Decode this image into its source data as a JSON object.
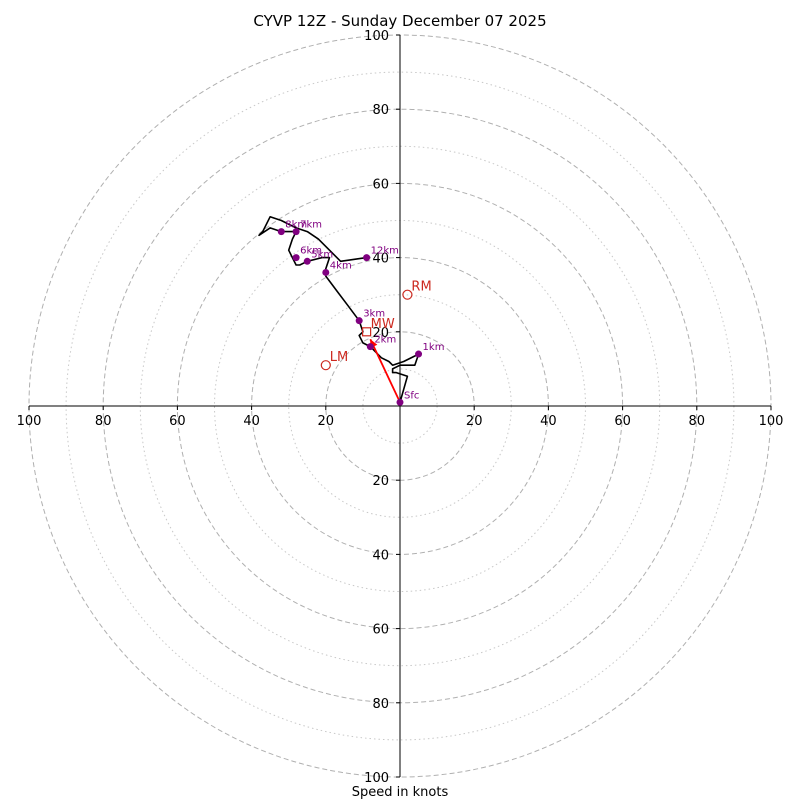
{
  "chart_data": {
    "type": "hodograph",
    "title": "CYVP 12Z - Sunday December 07 2025",
    "xlabel": "Speed in knots",
    "range": 100,
    "ticks": [
      20,
      40,
      60,
      80,
      100
    ],
    "tick_labels": [
      "20",
      "40",
      "60",
      "80",
      "100"
    ],
    "ring_labels": {
      "left": [
        "100",
        "80",
        "60",
        "40",
        "20"
      ],
      "right": [
        "20",
        "40",
        "60",
        "80",
        "100"
      ]
    },
    "dashed_rings": [
      20,
      40,
      60,
      80,
      100
    ],
    "dotted_rings": [
      10,
      30,
      50,
      70,
      90
    ],
    "colors": {
      "trace": "#000000",
      "height_marker": "#800080",
      "motion": "#cc2a20",
      "mean_wind_arrow": "#ff0000",
      "grid": "#b0b0b0"
    },
    "trace": [
      {
        "u": 0,
        "v": 1
      },
      {
        "u": 2,
        "v": 8
      },
      {
        "u": -1,
        "v": 9
      },
      {
        "u": -2,
        "v": 9
      },
      {
        "u": -2,
        "v": 10
      },
      {
        "u": 0,
        "v": 11
      },
      {
        "u": 2,
        "v": 11
      },
      {
        "u": 4,
        "v": 11
      },
      {
        "u": 5,
        "v": 14
      },
      {
        "u": 1,
        "v": 12
      },
      {
        "u": -2,
        "v": 11
      },
      {
        "u": -3,
        "v": 12
      },
      {
        "u": -5,
        "v": 13
      },
      {
        "u": -8,
        "v": 16
      },
      {
        "u": -10,
        "v": 17
      },
      {
        "u": -11,
        "v": 19
      },
      {
        "u": -10,
        "v": 20
      },
      {
        "u": -11,
        "v": 23
      },
      {
        "u": -14,
        "v": 27
      },
      {
        "u": -17,
        "v": 31
      },
      {
        "u": -20,
        "v": 35
      },
      {
        "u": -20,
        "v": 37
      },
      {
        "u": -19,
        "v": 40
      },
      {
        "u": -21,
        "v": 40
      },
      {
        "u": -25,
        "v": 39
      },
      {
        "u": -27,
        "v": 38
      },
      {
        "u": -28,
        "v": 38
      },
      {
        "u": -29,
        "v": 40
      },
      {
        "u": -30,
        "v": 42
      },
      {
        "u": -29,
        "v": 45
      },
      {
        "u": -28,
        "v": 47
      },
      {
        "u": -32,
        "v": 47
      },
      {
        "u": -35,
        "v": 48
      },
      {
        "u": -38,
        "v": 46
      },
      {
        "u": -37,
        "v": 47
      },
      {
        "u": -35,
        "v": 51
      },
      {
        "u": -32,
        "v": 50
      },
      {
        "u": -28,
        "v": 48
      },
      {
        "u": -25,
        "v": 47
      },
      {
        "u": -22,
        "v": 45
      },
      {
        "u": -19,
        "v": 42
      },
      {
        "u": -16,
        "v": 39
      },
      {
        "u": -9,
        "v": 40
      },
      {
        "u": -8,
        "v": 40
      }
    ],
    "height_markers": [
      {
        "label": "Sfc",
        "u": 0,
        "v": 1
      },
      {
        "label": "1km",
        "u": 5,
        "v": 14
      },
      {
        "label": "2km",
        "u": -8,
        "v": 16
      },
      {
        "label": "3km",
        "u": -11,
        "v": 23
      },
      {
        "label": "4km",
        "u": -20,
        "v": 36
      },
      {
        "label": "5km",
        "u": -25,
        "v": 39
      },
      {
        "label": "6km",
        "u": -28,
        "v": 40
      },
      {
        "label": "7km",
        "u": -28,
        "v": 47
      },
      {
        "label": "8km",
        "u": -32,
        "v": 47
      },
      {
        "label": "12km",
        "u": -9,
        "v": 40
      }
    ],
    "storm_motion": [
      {
        "label": "RM",
        "u": 2,
        "v": 30
      },
      {
        "label": "LM",
        "u": -20,
        "v": 11
      },
      {
        "label": "MW",
        "u": -9,
        "v": 20
      }
    ],
    "mean_wind_arrow": {
      "from": {
        "u": 0,
        "v": 1
      },
      "to": {
        "u": -8,
        "v": 18
      }
    }
  }
}
